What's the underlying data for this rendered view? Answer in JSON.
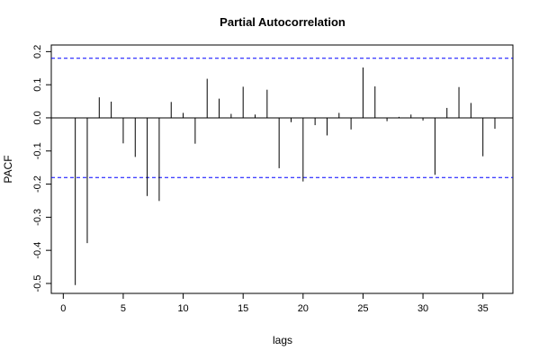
{
  "chart_data": {
    "type": "bar",
    "title": "Partial Autocorrelation",
    "xlabel": "lags",
    "ylabel": "PACF",
    "xlim": [
      -1,
      37.5
    ],
    "ylim": [
      -0.53,
      0.22
    ],
    "xticks": [
      0,
      5,
      10,
      15,
      20,
      25,
      30,
      35
    ],
    "yticks": [
      -0.5,
      -0.4,
      -0.3,
      -0.2,
      -0.1,
      0.0,
      0.1,
      0.2
    ],
    "ytick_labels": [
      "-0.5",
      "-0.4",
      "-0.3",
      "-0.2",
      "-0.1",
      "0.0",
      "0.1",
      "0.2"
    ],
    "confidence_bound": 0.18,
    "confidence_color": "#0000ff",
    "bar_color": "#000000",
    "lags": [
      1,
      2,
      3,
      4,
      5,
      6,
      7,
      8,
      9,
      10,
      11,
      12,
      13,
      14,
      15,
      16,
      17,
      18,
      19,
      20,
      21,
      22,
      23,
      24,
      25,
      26,
      27,
      28,
      29,
      30,
      31,
      32,
      33,
      34,
      35,
      36
    ],
    "values": [
      -0.505,
      -0.378,
      0.062,
      0.049,
      -0.077,
      -0.118,
      -0.236,
      -0.251,
      0.048,
      0.015,
      -0.078,
      0.118,
      0.058,
      0.012,
      0.094,
      0.01,
      0.085,
      -0.152,
      -0.013,
      -0.192,
      -0.022,
      -0.053,
      0.015,
      -0.035,
      0.152,
      0.095,
      -0.01,
      0.003,
      0.01,
      -0.008,
      -0.172,
      0.03,
      0.093,
      0.045,
      -0.116,
      -0.033
    ]
  }
}
